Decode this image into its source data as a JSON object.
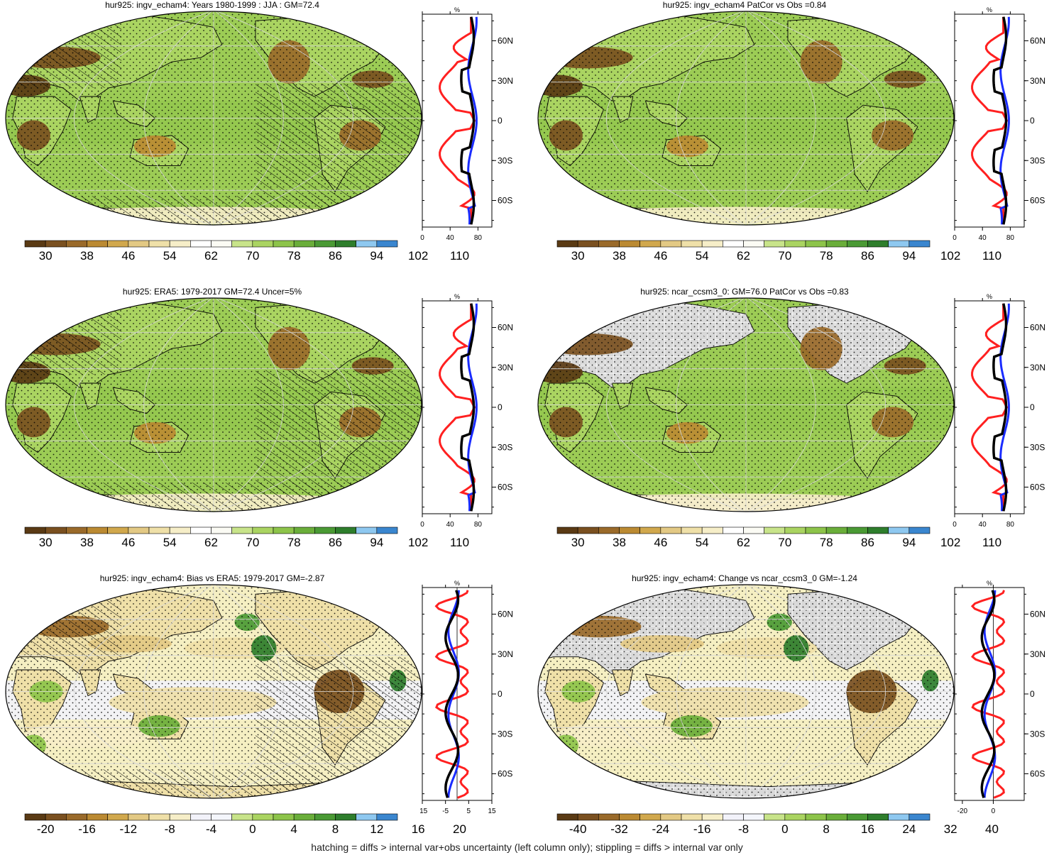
{
  "chart_data": [
    {
      "type": "heatmap",
      "title": "hur925: ingv_echam4: Years 1980-1999 : JJA : GM=72.4",
      "colorbar": {
        "labels": [
          "30",
          "38",
          "46",
          "54",
          "62",
          "70",
          "78",
          "86",
          "94",
          "102",
          "110"
        ],
        "range": [
          26,
          114
        ]
      },
      "zonal": {
        "unit": "%",
        "xticks": [
          "0",
          "40",
          "80"
        ],
        "xlim": [
          0,
          100
        ],
        "yticks": [
          "60N",
          "30N",
          "0",
          "30S",
          "60S"
        ],
        "ylim": [
          -80,
          80
        ]
      },
      "palette": "abs"
    },
    {
      "type": "heatmap",
      "title": "hur925: ingv_echam4 PatCor vs Obs =0.84",
      "colorbar": {
        "labels": [
          "30",
          "38",
          "46",
          "54",
          "62",
          "70",
          "78",
          "86",
          "94",
          "102",
          "110"
        ],
        "range": [
          26,
          114
        ]
      },
      "zonal": {
        "unit": "%",
        "xticks": [
          "0",
          "40",
          "80"
        ],
        "xlim": [
          0,
          100
        ],
        "yticks": [
          "60N",
          "30N",
          "0",
          "30S",
          "60S"
        ],
        "ylim": [
          -80,
          80
        ]
      },
      "palette": "abs"
    },
    {
      "type": "heatmap",
      "title": "hur925: ERA5: 1979-2017 GM=72.4 Uncer=5%",
      "colorbar": {
        "labels": [
          "30",
          "38",
          "46",
          "54",
          "62",
          "70",
          "78",
          "86",
          "94",
          "102",
          "110"
        ],
        "range": [
          26,
          114
        ]
      },
      "zonal": {
        "unit": "%",
        "xticks": [
          "0",
          "40",
          "80"
        ],
        "xlim": [
          0,
          100
        ],
        "yticks": [
          "60N",
          "30N",
          "0",
          "30S",
          "60S"
        ],
        "ylim": [
          -80,
          80
        ]
      },
      "palette": "abs"
    },
    {
      "type": "heatmap",
      "title": "hur925: ncar_ccsm3_0: GM=76.0 PatCor vs Obs =0.83",
      "colorbar": {
        "labels": [
          "30",
          "38",
          "46",
          "54",
          "62",
          "70",
          "78",
          "86",
          "94",
          "102",
          "110"
        ],
        "range": [
          26,
          114
        ]
      },
      "zonal": {
        "unit": "%",
        "xticks": [
          "0",
          "40",
          "80"
        ],
        "xlim": [
          0,
          100
        ],
        "yticks": [
          "60N",
          "30N",
          "0",
          "30S",
          "60S"
        ],
        "ylim": [
          -80,
          80
        ]
      },
      "palette": "abs"
    },
    {
      "type": "heatmap",
      "title": "hur925: ingv_echam4: Bias vs ERA5: 1979-2017 GM=-2.87",
      "colorbar": {
        "labels": [
          "-20",
          "-16",
          "-12",
          "-8",
          "-4",
          "0",
          "4",
          "8",
          "12",
          "16",
          "20"
        ],
        "range": [
          -22,
          22
        ]
      },
      "zonal": {
        "unit": "%",
        "xticks": [
          "-15",
          "-5",
          "5",
          "15"
        ],
        "xlim": [
          -15,
          15
        ],
        "yticks": [
          "60N",
          "30N",
          "0",
          "30S",
          "60S"
        ],
        "ylim": [
          -80,
          80
        ]
      },
      "palette": "diff"
    },
    {
      "type": "heatmap",
      "title": "hur925: ingv_echam4: Change vs ncar_ccsm3_0 GM=-1.24",
      "colorbar": {
        "labels": [
          "-40",
          "-32",
          "-24",
          "-16",
          "-8",
          "0",
          "8",
          "16",
          "24",
          "32",
          "40"
        ],
        "range": [
          -44,
          44
        ]
      },
      "zonal": {
        "unit": "%",
        "xticks": [
          "-20",
          "0"
        ],
        "xlim": [
          -25,
          20
        ],
        "yticks": [
          "60N",
          "30N",
          "0",
          "30S",
          "60S"
        ],
        "ylim": [
          -80,
          80
        ]
      },
      "palette": "diff"
    }
  ],
  "colors": {
    "abs": [
      "#5a3a14",
      "#7a5020",
      "#9a6a2a",
      "#bb8a32",
      "#d1a84d",
      "#e3c984",
      "#efe0a8",
      "#f6eec8",
      "#ffffff",
      "#fbfbf4",
      "#c8e48a",
      "#aad461",
      "#8dc44a",
      "#6aae3a",
      "#4a9a34",
      "#2e7e2c",
      "#8ec8f0",
      "#3a86cf"
    ],
    "diff": [
      "#5a3a14",
      "#7a5020",
      "#9a6a2a",
      "#bb8a32",
      "#d1a84d",
      "#e3c984",
      "#efe0a8",
      "#f6eec8",
      "#f2f2fa",
      "#f4f6fc",
      "#c8e48a",
      "#aad461",
      "#8dc44a",
      "#6aae3a",
      "#4a9a34",
      "#2e7e2c",
      "#8ec8f0",
      "#3a86cf"
    ],
    "ocean_abs": "#9ccc55",
    "ocean_diff": "#f5efc2",
    "line_red": "#ff2020",
    "line_blue": "#1a2cff",
    "line_black": "#000000"
  },
  "footer": "hatching = diffs > internal var+obs uncertainty (left column only); stippling = diffs > internal var only"
}
